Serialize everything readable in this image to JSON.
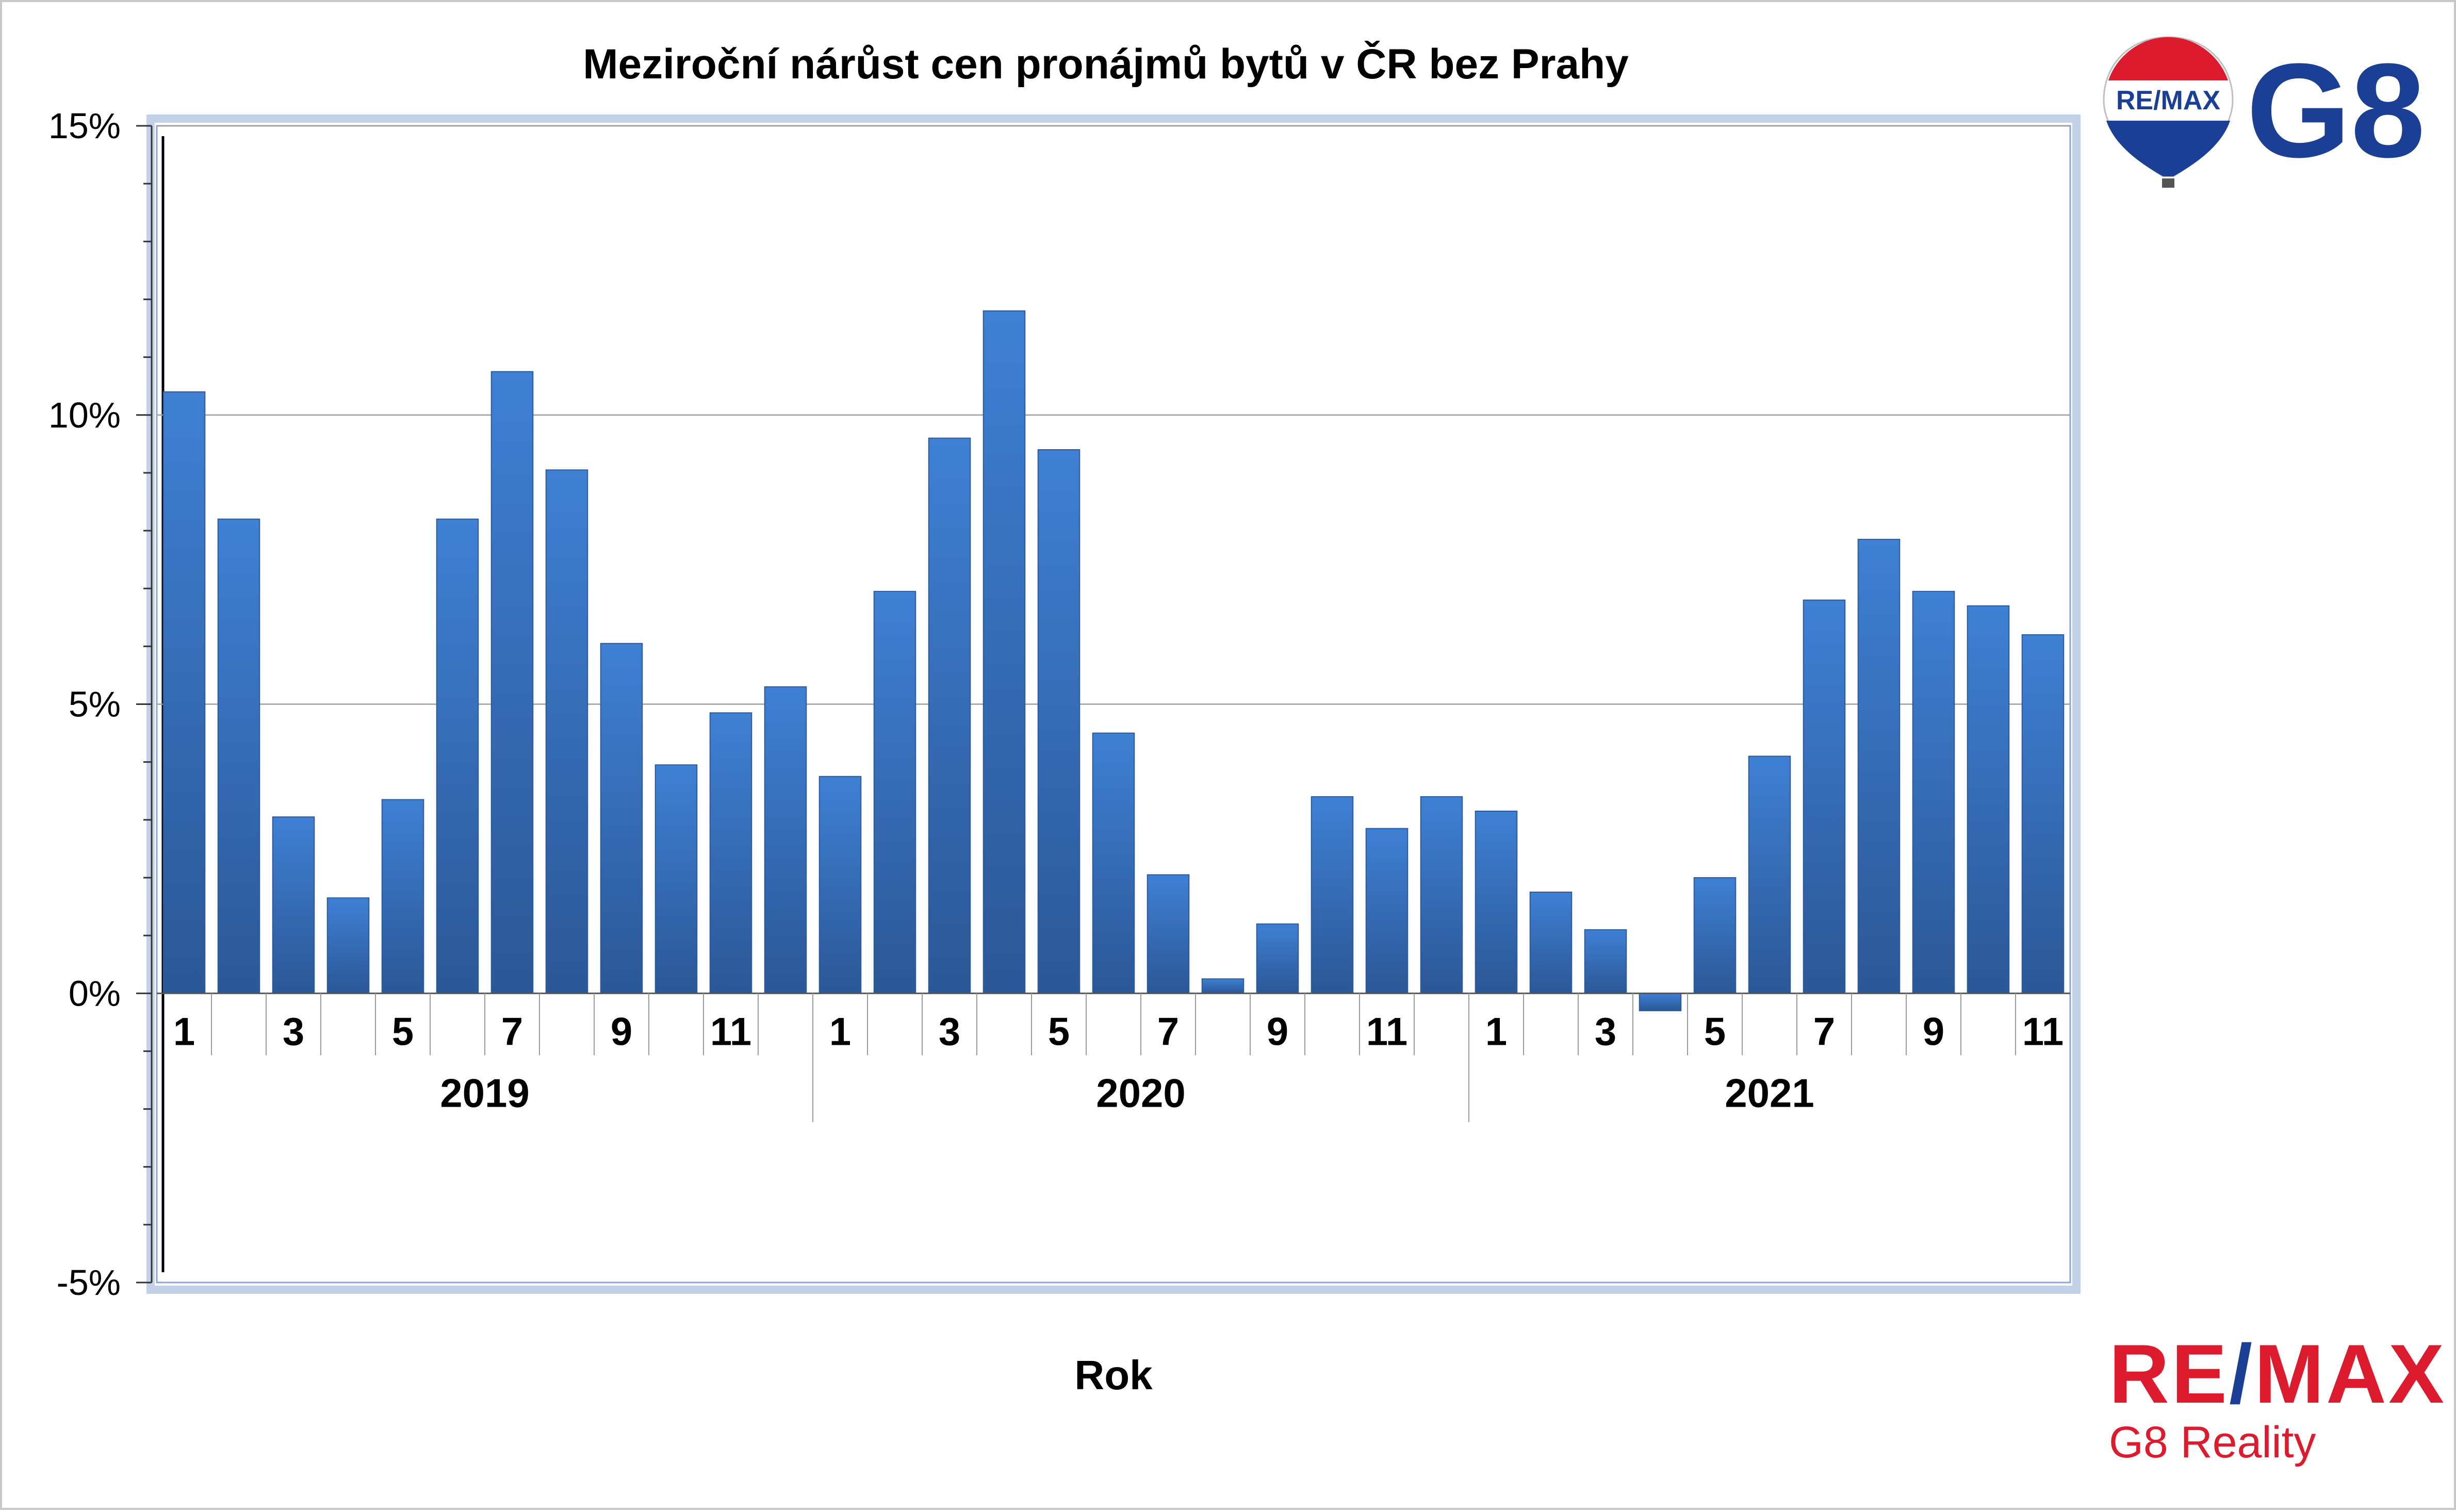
{
  "chart_data": {
    "type": "bar",
    "title": "Meziroční nárůst cen pronájmů bytů v ČR bez Prahy",
    "xlabel": "Rok",
    "ylabel": "",
    "ylim": [
      -5,
      15
    ],
    "y_ticks": [
      "-5%",
      "0%",
      "5%",
      "10%",
      "15%"
    ],
    "y_tick_values": [
      -5,
      0,
      5,
      10,
      15
    ],
    "grid": "horizontal",
    "legend": "none",
    "years": [
      "2019",
      "2020",
      "2021"
    ],
    "month_tick_labels": [
      "1",
      "3",
      "5",
      "7",
      "9",
      "11"
    ],
    "categories": [
      "1/2019",
      "2/2019",
      "3/2019",
      "4/2019",
      "5/2019",
      "6/2019",
      "7/2019",
      "8/2019",
      "9/2019",
      "10/2019",
      "11/2019",
      "12/2019",
      "1/2020",
      "2/2020",
      "3/2020",
      "4/2020",
      "5/2020",
      "6/2020",
      "7/2020",
      "8/2020",
      "9/2020",
      "10/2020",
      "11/2020",
      "12/2020",
      "1/2021",
      "2/2021",
      "3/2021",
      "4/2021",
      "5/2021",
      "6/2021",
      "7/2021",
      "8/2021",
      "9/2021",
      "10/2021",
      "11/2021"
    ],
    "values": [
      10.4,
      8.2,
      3.05,
      1.65,
      3.35,
      8.2,
      10.75,
      9.05,
      6.05,
      3.95,
      4.85,
      5.3,
      3.75,
      6.95,
      9.6,
      11.8,
      9.4,
      4.5,
      2.05,
      0.25,
      1.2,
      3.4,
      2.85,
      3.4,
      3.15,
      1.75,
      1.1,
      -0.3,
      2.0,
      4.1,
      6.8,
      7.85,
      6.95,
      6.7,
      6.2
    ],
    "colors": {
      "bar": "#3a78c9",
      "bar_dark": "#2d5a9e",
      "grid": "#a0a0a0",
      "plot_border": "#8aa7d6"
    }
  },
  "branding": {
    "balloon_text": "RE/MAX",
    "logo_text": "G8",
    "footer_brand": "RE/MAX",
    "footer_sub": "G8 Reality",
    "colors": {
      "red": "#dc1c2e",
      "blue": "#1b3f94"
    }
  }
}
